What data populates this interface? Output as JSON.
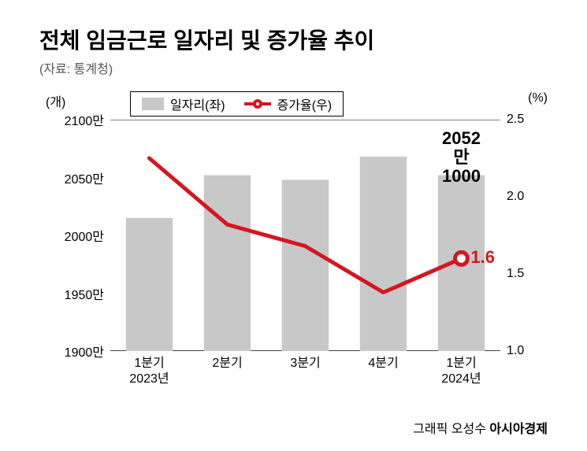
{
  "title": "전체 임금근로 일자리 및 증가율 추이",
  "subtitle": "(자료: 통계청)",
  "legend": {
    "bar_label": "일자리(좌)",
    "line_label": "증가율(우)"
  },
  "axes": {
    "left_unit": "(개)",
    "right_unit": "(%)",
    "left_min": 1900,
    "left_max": 2100,
    "left_ticks": [
      1900,
      1950,
      2000,
      2050,
      2100
    ],
    "left_tick_suffix": "만",
    "right_min": 1.0,
    "right_max": 2.5,
    "right_ticks": [
      1.0,
      1.5,
      2.0,
      2.5
    ]
  },
  "categories": [
    {
      "top": "1분기",
      "sub": "2023년"
    },
    {
      "top": "2분기",
      "sub": ""
    },
    {
      "top": "3분기",
      "sub": ""
    },
    {
      "top": "4분기",
      "sub": ""
    },
    {
      "top": "1분기",
      "sub": "2024년"
    }
  ],
  "series_bar": {
    "values": [
      2015,
      2052,
      2048,
      2068,
      2052
    ],
    "color": "#c8c8c8",
    "bar_width": 0.6
  },
  "series_line": {
    "values": [
      2.25,
      1.82,
      1.68,
      1.38,
      1.6
    ],
    "color": "#d51620",
    "line_width": 5,
    "marker_last_only": true,
    "marker_radius": 8,
    "marker_stroke": 5,
    "marker_fill": "#ffffff"
  },
  "callout": {
    "bar_value_line1": "2052만",
    "bar_value_line2": "1000",
    "rate_value": "1.6"
  },
  "style": {
    "axis_color": "#000000",
    "tick_font_size": 16,
    "title_font_size": 28,
    "title_weight": 900,
    "background": "#ffffff",
    "callout_rate_color": "#d51620"
  },
  "credit": {
    "prefix": "그래픽 오성수 ",
    "brand": "아시아경제"
  }
}
